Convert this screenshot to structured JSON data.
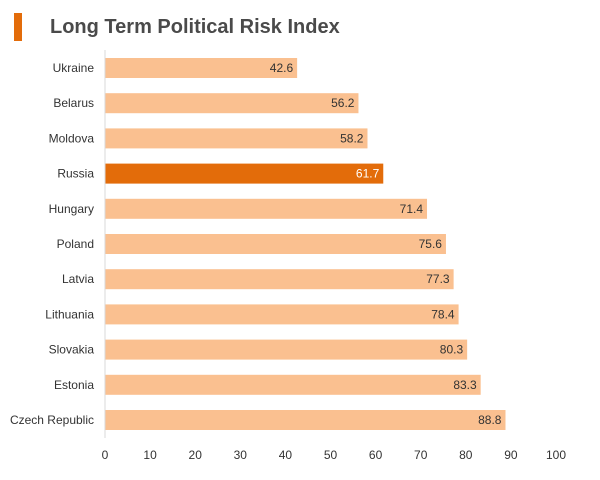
{
  "header": {
    "title": "Long Term Political Risk Index"
  },
  "colors": {
    "accent": "#e36c0a",
    "bar": "#fac090",
    "highlight": "#e36c0a"
  },
  "chart_data": {
    "type": "bar",
    "orientation": "horizontal",
    "title": "Long Term Political Risk Index",
    "categories": [
      "Ukraine",
      "Belarus",
      "Moldova",
      "Russia",
      "Hungary",
      "Poland",
      "Latvia",
      "Lithuania",
      "Slovakia",
      "Estonia",
      "Czech Republic"
    ],
    "values": [
      42.6,
      56.2,
      58.2,
      61.7,
      71.4,
      75.6,
      77.3,
      78.4,
      80.3,
      83.3,
      88.8
    ],
    "value_labels": [
      "42.6",
      "56.2",
      "58.2",
      "61.7",
      "71.4",
      "75.6",
      "77.3",
      "78.4",
      "80.3",
      "83.3",
      "88.8"
    ],
    "highlight": "Russia",
    "xlim": [
      0,
      100
    ],
    "xticks": [
      "0",
      "10",
      "20",
      "30",
      "40",
      "50",
      "60",
      "70",
      "80",
      "90",
      "100"
    ],
    "xlabel": "",
    "ylabel": "",
    "grid": false,
    "legend": "none"
  }
}
